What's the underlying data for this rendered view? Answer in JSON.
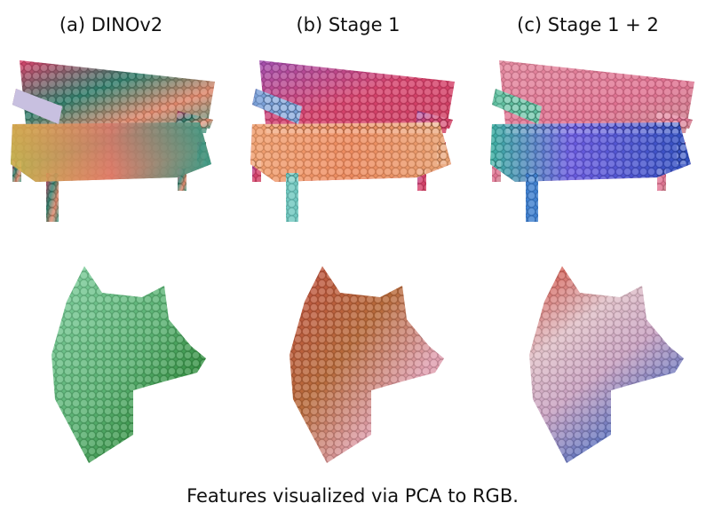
{
  "figure": {
    "column_titles": [
      "(a) DINOv2",
      "(b) Stage 1",
      "(c) Stage 1 + 2"
    ],
    "caption": "Features visualized via PCA to RGB."
  }
}
